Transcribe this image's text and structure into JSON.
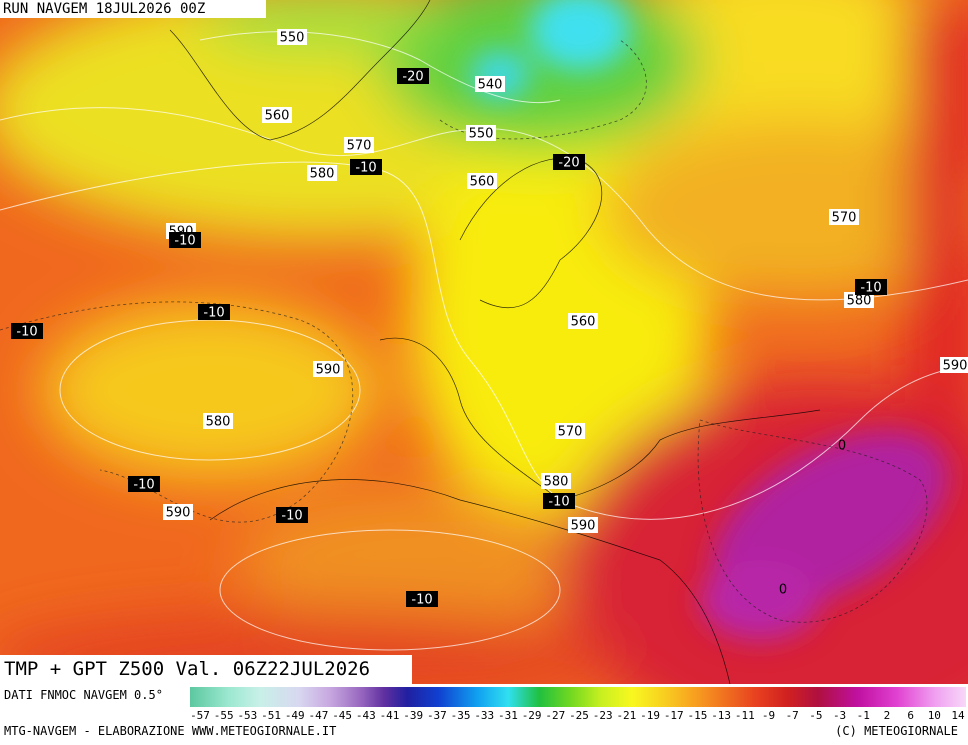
{
  "header": {
    "run": "RUN NAVGEM 18JUL2026 00Z"
  },
  "map": {
    "title": "TMP + GPT Z500 Val. 06Z22JUL2026",
    "gpt_labels": [
      550,
      540,
      550,
      560,
      570,
      580,
      560,
      590,
      570,
      560,
      590,
      580,
      570,
      580,
      590,
      590,
      580,
      590
    ],
    "tmp_labels": [
      -20,
      -20,
      -10,
      -10,
      -10,
      -10,
      -10,
      -10,
      -10,
      -10,
      -10,
      0,
      0
    ]
  },
  "legend": {
    "source": "DATI FNMOC NAVGEM 0.5°",
    "ticks": [
      -57,
      -55,
      -53,
      -51,
      -49,
      -47,
      -45,
      -43,
      -41,
      -39,
      -37,
      -35,
      -33,
      -31,
      -29,
      -27,
      -25,
      -23,
      -21,
      -19,
      -17,
      -15,
      -13,
      -11,
      -9,
      -7,
      -5,
      -3,
      -1,
      2,
      6,
      10,
      14
    ]
  },
  "footer": {
    "left": "MTG-NAVGEM - ELABORAZIONE WWW.METEOGIORNALE.IT",
    "right": "(C) METEOGIORNALE"
  }
}
